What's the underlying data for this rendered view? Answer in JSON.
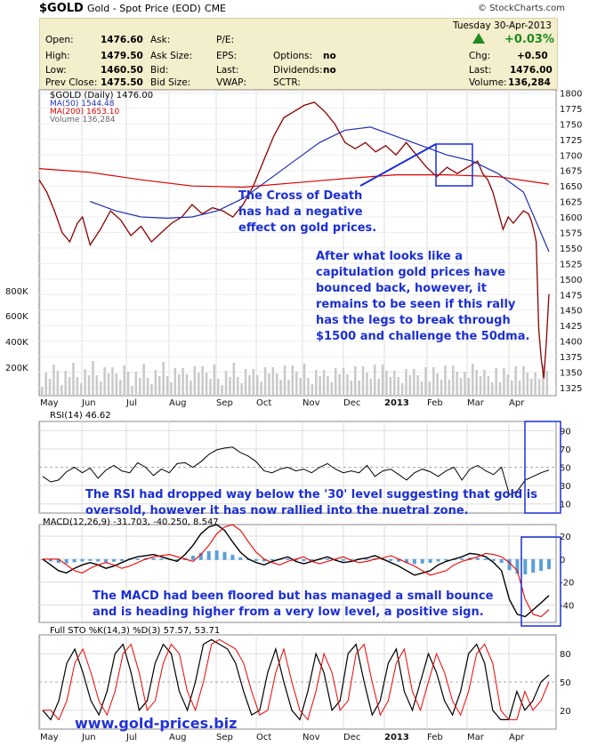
{
  "header": {
    "symbol": "$GOLD",
    "name": "Gold - Spot Price (EOD)",
    "exchange": "CME",
    "brand": "© StockCharts.com"
  },
  "quote": {
    "date": "Tuesday  30-Apr-2013",
    "pct_change": "+0.03%",
    "labels": {
      "open": "Open:",
      "high": "High:",
      "low": "Low:",
      "prev_close": "Prev Close:",
      "ask": "Ask:",
      "ask_size": "Ask Size:",
      "bid": "Bid:",
      "bid_size": "Bid Size:",
      "pe": "P/E:",
      "eps": "EPS:",
      "last": "Last:",
      "vwap": "VWAP:",
      "options": "Options:",
      "dividends": "Dividends:",
      "sctr": "SCTR:",
      "chg": "Chg:",
      "last2": "Last:",
      "volume": "Volume:"
    },
    "values": {
      "open": "1476.60",
      "high": "1479.50",
      "low": "1460.50",
      "prev_close": "1475.50",
      "options": "no",
      "dividends": "no",
      "chg": "+0.50",
      "last": "1476.00",
      "volume": "136,284"
    },
    "up_arrow_color": "#1f8a1f"
  },
  "annotations": {
    "cross_of_death": [
      "The Cross of Death",
      "has had a negative",
      "effect on gold prices."
    ],
    "capitulation": [
      "After what looks like a",
      "capitulation gold prices have",
      "bounced back, however, it",
      "remains to be seen if this rally",
      "has the legs to break through",
      "$1500 and challenge the 50dma."
    ],
    "rsi_note": [
      "The RSI had dropped way below the '30' level suggesting that gold is",
      "oversold, however it has now rallied into the nuetral zone."
    ],
    "macd_note": [
      "The MACD had been floored but has managed a small bounce",
      "and is heading higher from a very low level, a positive sign."
    ],
    "website": "www.gold-prices.biz"
  },
  "chart_data": [
    {
      "type": "line",
      "title": "$GOLD (Daily) 1476.00",
      "legend": [
        "$GOLD (Daily) 1476.00",
        "MA(50) 1544.48",
        "MA(200) 1653.10",
        "Volume 136,284"
      ],
      "x_ticks": [
        "May",
        "Jun",
        "Jul",
        "Aug",
        "Sep",
        "Oct",
        "Nov",
        "Dec",
        "2013",
        "Feb",
        "Mar",
        "Apr"
      ],
      "y_ticks": [
        1325,
        1350,
        1375,
        1400,
        1425,
        1450,
        1475,
        1500,
        1525,
        1550,
        1575,
        1600,
        1625,
        1650,
        1675,
        1700,
        1725,
        1750,
        1775,
        1800
      ],
      "volume_ticks": [
        "200K",
        "400K",
        "600K",
        "800K"
      ],
      "ylim": [
        1312,
        1805
      ],
      "series": [
        {
          "name": "$GOLD (Daily) 1476.00",
          "color": "#8b0000",
          "points": [
            [
              0,
              1660
            ],
            [
              0.015,
              1640
            ],
            [
              0.03,
              1610
            ],
            [
              0.045,
              1575
            ],
            [
              0.06,
              1560
            ],
            [
              0.075,
              1590
            ],
            [
              0.085,
              1600
            ],
            [
              0.1,
              1555
            ],
            [
              0.12,
              1580
            ],
            [
              0.14,
              1610
            ],
            [
              0.16,
              1595
            ],
            [
              0.18,
              1570
            ],
            [
              0.2,
              1585
            ],
            [
              0.22,
              1560
            ],
            [
              0.24,
              1575
            ],
            [
              0.26,
              1590
            ],
            [
              0.28,
              1600
            ],
            [
              0.3,
              1620
            ],
            [
              0.32,
              1605
            ],
            [
              0.34,
              1615
            ],
            [
              0.36,
              1610
            ],
            [
              0.38,
              1600
            ],
            [
              0.4,
              1620
            ],
            [
              0.42,
              1650
            ],
            [
              0.44,
              1690
            ],
            [
              0.46,
              1730
            ],
            [
              0.48,
              1760
            ],
            [
              0.5,
              1770
            ],
            [
              0.52,
              1780
            ],
            [
              0.54,
              1785
            ],
            [
              0.56,
              1770
            ],
            [
              0.58,
              1750
            ],
            [
              0.6,
              1720
            ],
            [
              0.62,
              1710
            ],
            [
              0.64,
              1720
            ],
            [
              0.66,
              1705
            ],
            [
              0.68,
              1715
            ],
            [
              0.7,
              1700
            ],
            [
              0.72,
              1720
            ],
            [
              0.74,
              1700
            ],
            [
              0.76,
              1680
            ],
            [
              0.78,
              1665
            ],
            [
              0.8,
              1680
            ],
            [
              0.82,
              1670
            ],
            [
              0.84,
              1680
            ],
            [
              0.86,
              1690
            ],
            [
              0.87,
              1670
            ],
            [
              0.88,
              1660
            ],
            [
              0.89,
              1640
            ],
            [
              0.9,
              1610
            ],
            [
              0.91,
              1580
            ],
            [
              0.92,
              1600
            ],
            [
              0.93,
              1590
            ],
            [
              0.94,
              1600
            ],
            [
              0.95,
              1610
            ],
            [
              0.96,
              1605
            ],
            [
              0.965,
              1595
            ],
            [
              0.97,
              1580
            ],
            [
              0.975,
              1560
            ],
            [
              0.98,
              1420
            ],
            [
              0.985,
              1370
            ],
            [
              0.99,
              1340
            ],
            [
              0.995,
              1400
            ],
            [
              1.0,
              1476
            ]
          ]
        },
        {
          "name": "MA(50) 1544.48",
          "color": "#1f2fb0",
          "points": [
            [
              0.1,
              1625
            ],
            [
              0.15,
              1610
            ],
            [
              0.2,
              1600
            ],
            [
              0.25,
              1598
            ],
            [
              0.3,
              1600
            ],
            [
              0.35,
              1610
            ],
            [
              0.4,
              1630
            ],
            [
              0.45,
              1660
            ],
            [
              0.5,
              1690
            ],
            [
              0.55,
              1720
            ],
            [
              0.6,
              1740
            ],
            [
              0.65,
              1745
            ],
            [
              0.7,
              1730
            ],
            [
              0.75,
              1715
            ],
            [
              0.8,
              1700
            ],
            [
              0.85,
              1690
            ],
            [
              0.9,
              1670
            ],
            [
              0.95,
              1640
            ],
            [
              1.0,
              1544
            ]
          ]
        },
        {
          "name": "MA(200) 1653.10",
          "color": "#d80000",
          "points": [
            [
              0,
              1678
            ],
            [
              0.1,
              1672
            ],
            [
              0.2,
              1660
            ],
            [
              0.3,
              1650
            ],
            [
              0.4,
              1648
            ],
            [
              0.5,
              1655
            ],
            [
              0.6,
              1662
            ],
            [
              0.7,
              1668
            ],
            [
              0.8,
              1668
            ],
            [
              0.9,
              1665
            ],
            [
              1.0,
              1653
            ]
          ]
        }
      ]
    },
    {
      "type": "line",
      "title": "RSI(14) 46.62",
      "y_ticks": [
        10,
        30,
        50,
        70,
        90
      ],
      "ylim": [
        0,
        100
      ],
      "series": [
        {
          "name": "RSI(14) 46.62",
          "color": "#000",
          "values": [
            40,
            34,
            36,
            45,
            50,
            44,
            49,
            38,
            47,
            52,
            46,
            44,
            55,
            50,
            41,
            48,
            44,
            54,
            55,
            50,
            56,
            64,
            69,
            71,
            72,
            66,
            62,
            56,
            46,
            44,
            48,
            50,
            46,
            48,
            44,
            50,
            54,
            48,
            44,
            46,
            44,
            52,
            40,
            46,
            48,
            42,
            36,
            44,
            48,
            45,
            40,
            46,
            50,
            36,
            48,
            52,
            46,
            42,
            50,
            20,
            24,
            36,
            40,
            44,
            47
          ]
        }
      ]
    },
    {
      "type": "line",
      "title": "MACD(12,26,9) -31.703, -40.250, 8.547",
      "y_ticks": [
        -40,
        -20,
        0,
        20
      ],
      "ylim": [
        -55,
        30
      ],
      "series": [
        {
          "name": "MACD",
          "color": "#000",
          "values": [
            0,
            -5,
            -10,
            -12,
            -8,
            -5,
            -3,
            -5,
            -8,
            -6,
            -3,
            0,
            2,
            3,
            4,
            2,
            0,
            -2,
            4,
            12,
            22,
            28,
            30,
            25,
            15,
            6,
            0,
            -3,
            -5,
            -2,
            0,
            2,
            -2,
            -4,
            -2,
            0,
            2,
            -1,
            -3,
            -2,
            0,
            1,
            3,
            0,
            -3,
            -6,
            -10,
            -14,
            -12,
            -10,
            -5,
            -2,
            0,
            2,
            5,
            4,
            2,
            -3,
            -10,
            -35,
            -48,
            -50,
            -44,
            -38,
            -31.7
          ]
        }
      ]
    },
    {
      "type": "line",
      "title": "Full STO %K(14,3) %D(3) 57.57, 53.71",
      "y_ticks": [
        20,
        50,
        80
      ],
      "ylim": [
        0,
        100
      ],
      "series": [
        {
          "name": "%K",
          "color": "#000",
          "values": [
            20,
            10,
            30,
            70,
            85,
            60,
            30,
            15,
            40,
            80,
            90,
            60,
            20,
            30,
            70,
            90,
            80,
            40,
            20,
            50,
            90,
            95,
            90,
            85,
            70,
            40,
            15,
            20,
            60,
            85,
            50,
            20,
            10,
            40,
            80,
            60,
            20,
            30,
            80,
            90,
            50,
            15,
            30,
            70,
            85,
            40,
            20,
            50,
            80,
            60,
            30,
            15,
            40,
            80,
            90,
            70,
            20,
            10,
            10,
            40,
            20,
            30,
            50,
            57.57
          ]
        }
      ]
    }
  ]
}
